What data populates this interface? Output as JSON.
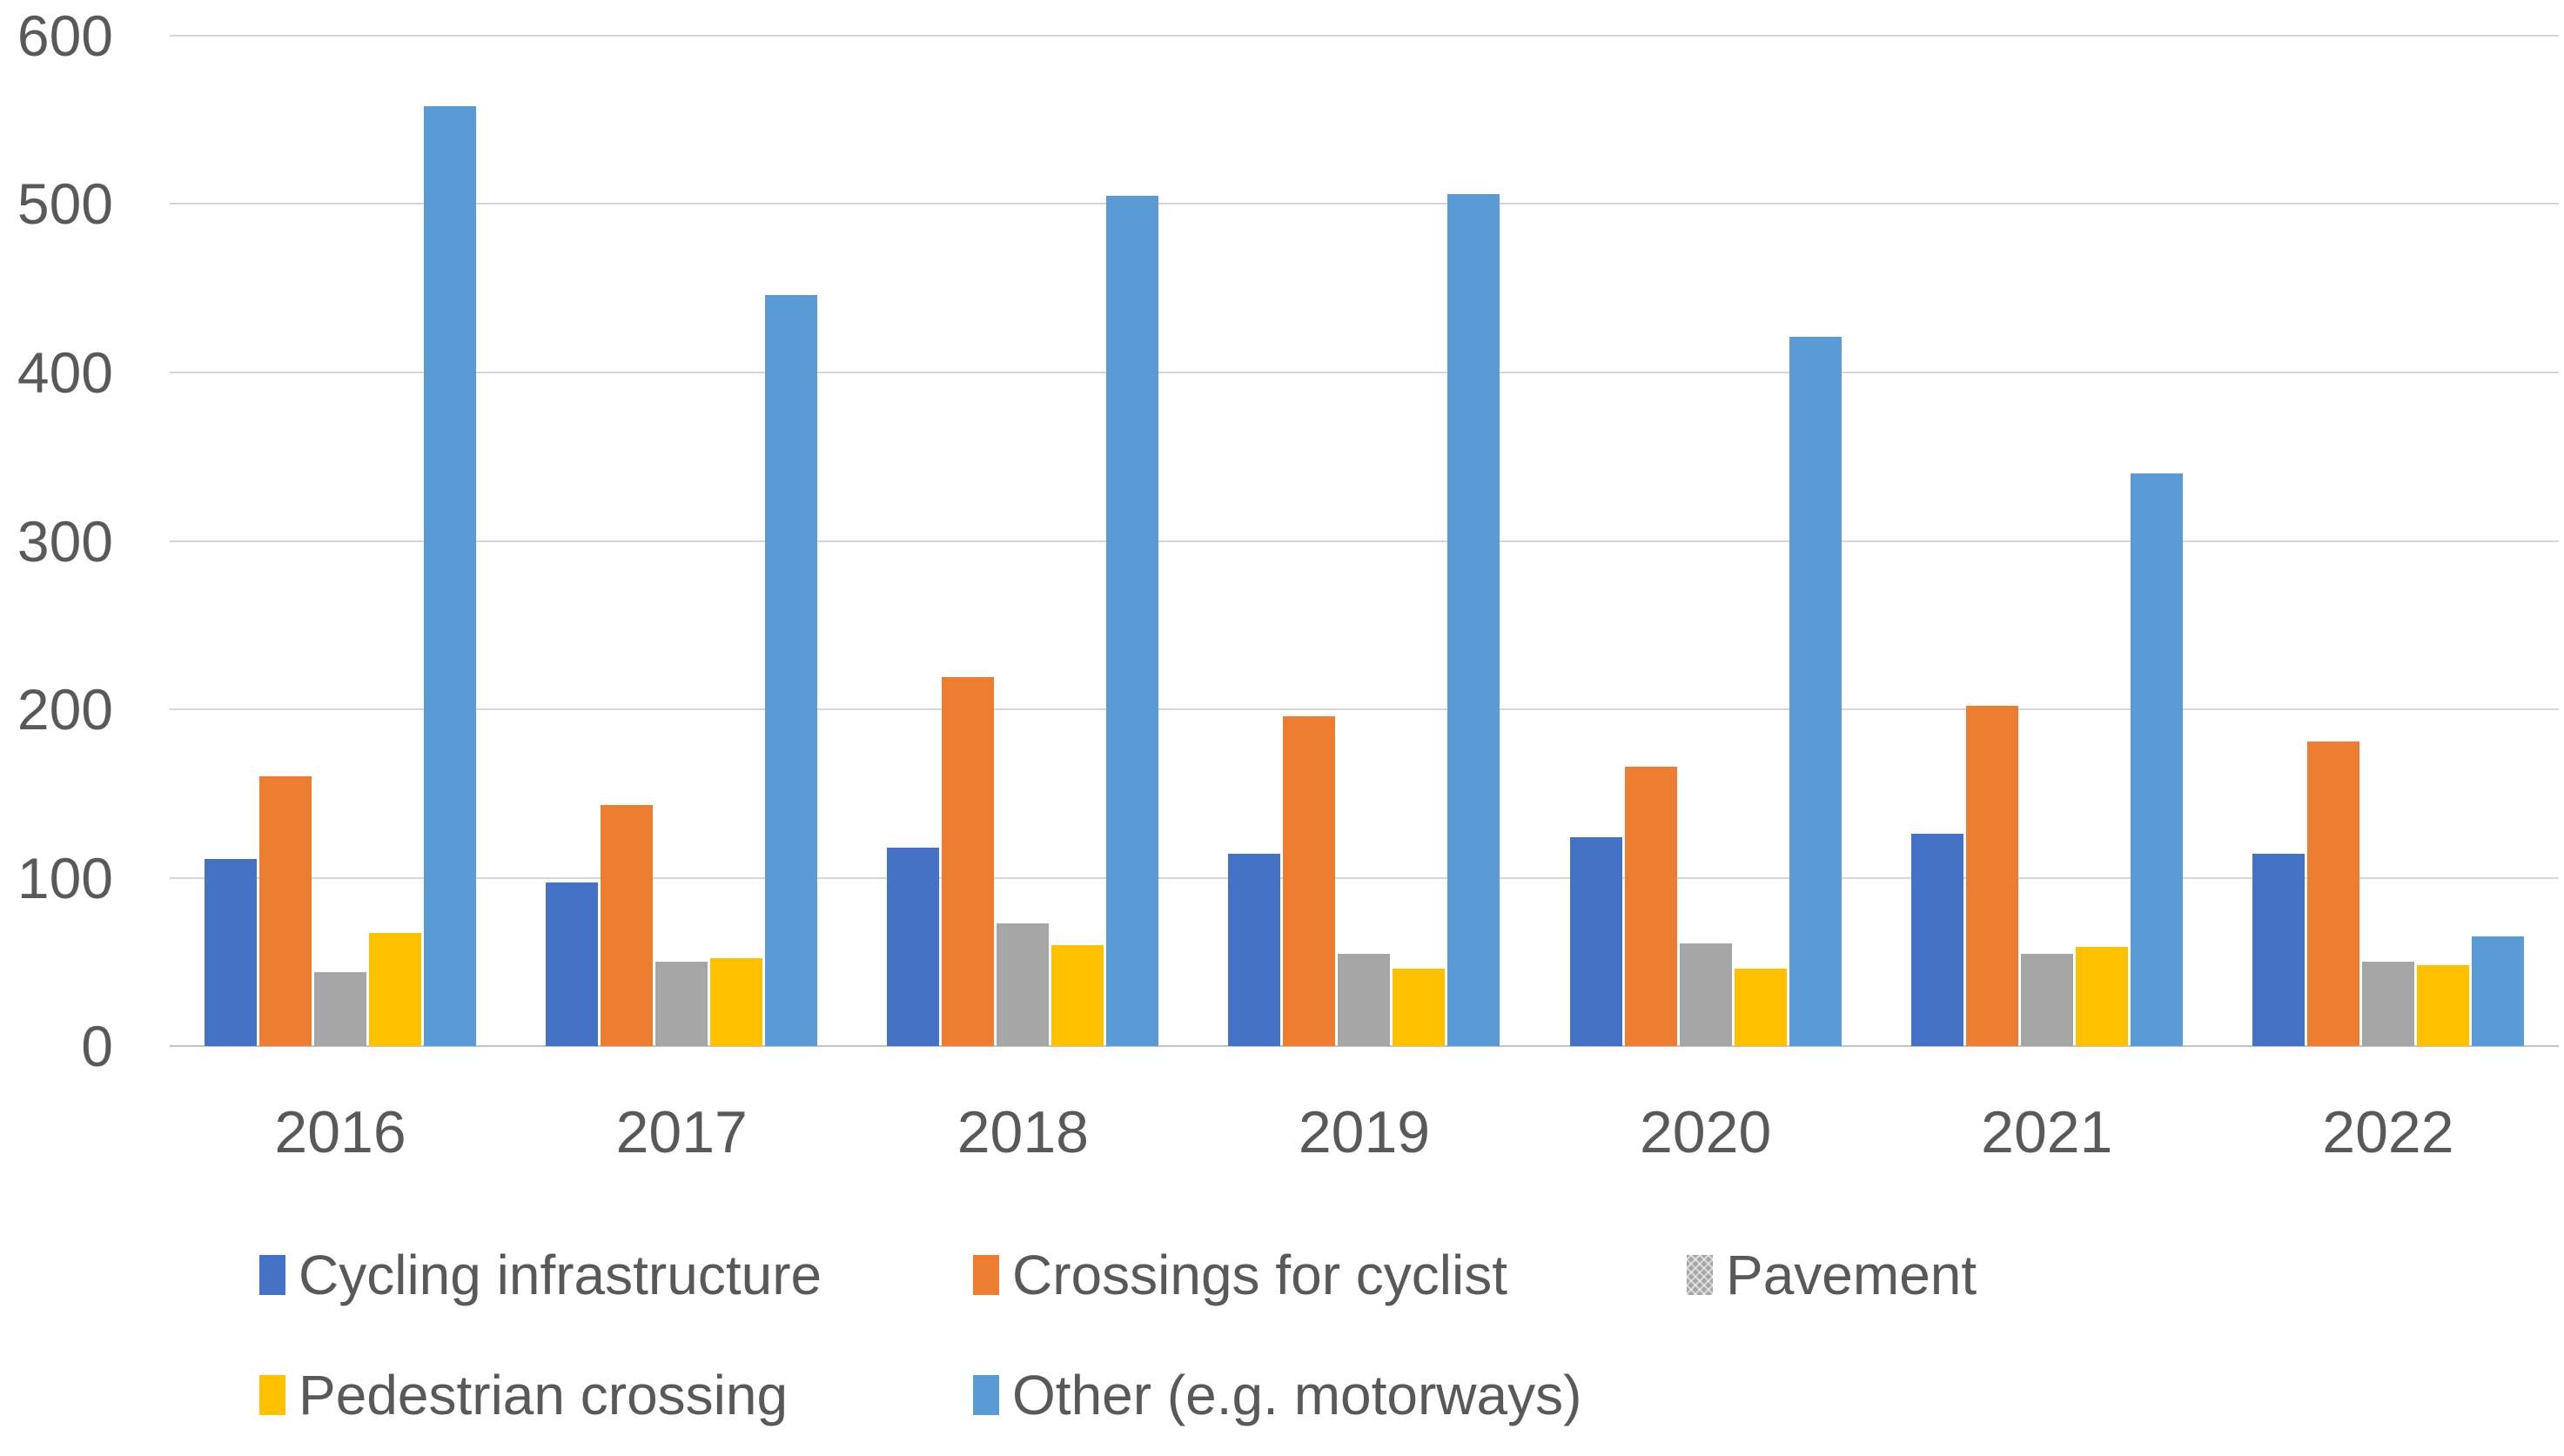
{
  "chart_data": {
    "type": "bar",
    "title": "",
    "xlabel": "",
    "ylabel": "",
    "categories": [
      "2016",
      "2017",
      "2018",
      "2019",
      "2020",
      "2021",
      "2022"
    ],
    "series": [
      {
        "name": "Cycling infrastructure",
        "color": "#4472C4",
        "pattern": "solid",
        "values": [
          111,
          97,
          118,
          114,
          124,
          126,
          114
        ]
      },
      {
        "name": "Crossings for cyclist",
        "color": "#ED7D31",
        "pattern": "solid",
        "values": [
          160,
          143,
          219,
          196,
          166,
          202,
          181
        ]
      },
      {
        "name": "Pavement",
        "color": "#A6A6A6",
        "pattern": "crosshatch",
        "values": [
          44,
          50,
          73,
          55,
          61,
          55,
          50
        ]
      },
      {
        "name": "Pedestrian crossing",
        "color": "#FFC000",
        "pattern": "solid",
        "values": [
          67,
          52,
          60,
          46,
          46,
          59,
          48
        ]
      },
      {
        "name": "Other (e.g. motorways)",
        "color": "#5B9BD5",
        "pattern": "solid",
        "values": [
          558,
          446,
          505,
          506,
          421,
          340,
          65
        ]
      }
    ],
    "y_axis": {
      "min": 0,
      "max": 600,
      "step": 100,
      "tick_labels": [
        "0",
        "100",
        "200",
        "300",
        "400",
        "500",
        "600"
      ]
    },
    "grid": true,
    "legend_position": "bottom",
    "legend_rows": [
      [
        "Cycling infrastructure",
        "Crossings for cyclist",
        "Pavement"
      ],
      [
        "Pedestrian crossing",
        "Other (e.g. motorways)"
      ]
    ],
    "styles": {
      "gridline_color": "#d6d6d6",
      "axis_text_color": "#595959",
      "background_color": "#ffffff"
    }
  }
}
